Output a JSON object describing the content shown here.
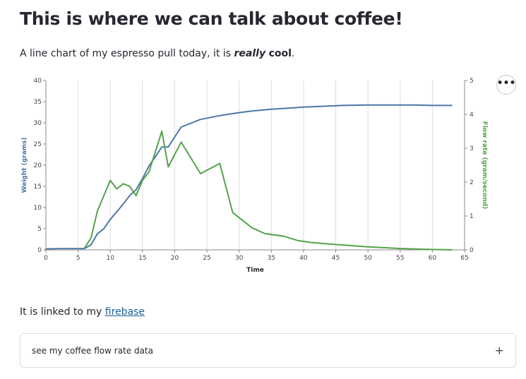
{
  "header": {
    "title": "This is where we can talk about coffee!"
  },
  "intro": {
    "text_before": "A line chart of my espresso pull today, it is ",
    "emphasis": "really",
    "strong": "cool",
    "text_after": "."
  },
  "menu": {
    "icon": "more-horizontal-icon",
    "label": "•••"
  },
  "linked": {
    "text": "It is linked to my ",
    "link_text": "firebase"
  },
  "expander": {
    "label": "see my coffee flow rate data",
    "icon": "plus-icon",
    "icon_glyph": "+"
  },
  "colors": {
    "weight": "#4c78a8",
    "flow": "#54a24b",
    "grid": "#dddddd",
    "axis": "#888888",
    "link": "#1c5e96"
  },
  "chart_data": {
    "type": "line",
    "xlabel": "Time",
    "xlim": [
      0,
      65
    ],
    "x_ticks": [
      0,
      5,
      10,
      15,
      20,
      25,
      30,
      35,
      40,
      45,
      50,
      55,
      60,
      65
    ],
    "grid": "vertical",
    "y_axes": [
      {
        "side": "left",
        "label": "Weight (grams)",
        "ylim": [
          0,
          40
        ],
        "ticks": [
          0,
          5,
          10,
          15,
          20,
          25,
          30,
          35,
          40
        ]
      },
      {
        "side": "right",
        "label": "Flow rate (gram/second)",
        "ylim": [
          0,
          5
        ],
        "ticks": [
          0,
          1,
          2,
          3,
          4,
          5
        ]
      }
    ],
    "series": [
      {
        "name": "Weight (grams)",
        "axis": "left",
        "x": [
          0,
          2,
          4,
          5,
          6,
          7,
          8,
          9,
          10,
          11,
          12,
          13,
          14,
          15,
          16,
          17,
          18,
          19,
          21,
          24,
          27,
          30,
          32,
          35,
          37,
          40,
          43,
          46,
          50,
          53,
          55,
          57,
          60,
          63
        ],
        "y": [
          0.2,
          0.3,
          0.3,
          0.3,
          0.3,
          1.2,
          3.8,
          5.0,
          7.2,
          9.0,
          10.8,
          12.8,
          14.2,
          16.8,
          19.8,
          22.0,
          24.3,
          24.3,
          29.0,
          30.8,
          31.7,
          32.4,
          32.8,
          33.2,
          33.4,
          33.7,
          33.9,
          34.1,
          34.2,
          34.2,
          34.2,
          34.2,
          34.1,
          34.1
        ]
      },
      {
        "name": "Flow rate (gram/second)",
        "axis": "right",
        "x": [
          6,
          7,
          8,
          10,
          11,
          12,
          13,
          14,
          15,
          16,
          18,
          19,
          21,
          24,
          27,
          29,
          32,
          34,
          37,
          39,
          41,
          44,
          47,
          50,
          53,
          55,
          58,
          60,
          63
        ],
        "y": [
          0.05,
          0.35,
          1.15,
          2.05,
          1.8,
          1.95,
          1.88,
          1.6,
          2.05,
          2.3,
          3.5,
          2.45,
          3.18,
          2.25,
          2.55,
          1.1,
          0.65,
          0.48,
          0.4,
          0.28,
          0.22,
          0.17,
          0.13,
          0.09,
          0.06,
          0.04,
          0.02,
          0.01,
          0.0
        ]
      }
    ]
  }
}
